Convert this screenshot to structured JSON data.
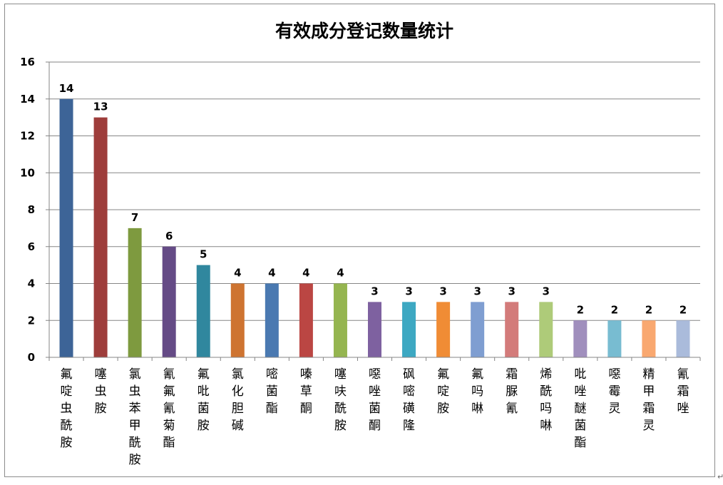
{
  "chart_data": {
    "type": "bar",
    "title": "有效成分登记数量统计",
    "xlabel": "",
    "ylabel": "",
    "ylim": [
      0,
      16
    ],
    "yticks": [
      0,
      2,
      4,
      6,
      8,
      10,
      12,
      14,
      16
    ],
    "grid": true,
    "legend": "none",
    "categories": [
      "氟啶虫酰胺",
      "噻虫胺",
      "氯虫苯甲酰胺",
      "氰氟氰菊酯",
      "氟吡菌胺",
      "氯化胆碱",
      "嘧菌酯",
      "嗪草酮",
      "噻呋酰胺",
      "噁唑菌酮",
      "砜嘧磺隆",
      "氟啶胺",
      "氟吗啉",
      "霜脲氰",
      "烯酰吗啉",
      "吡唑醚菌酯",
      "噁霉灵",
      "精甲霜灵",
      "氰霜唑"
    ],
    "values": [
      14,
      13,
      7,
      6,
      5,
      4,
      4,
      4,
      4,
      3,
      3,
      3,
      3,
      3,
      3,
      2,
      2,
      2,
      2
    ],
    "colors": [
      "#3D6497",
      "#9E3D3B",
      "#7E9A3F",
      "#654B86",
      "#30879E",
      "#CE7431",
      "#4A79B1",
      "#BB4643",
      "#95B550",
      "#7E61A0",
      "#3DA8C2",
      "#F08C35",
      "#7F9ED1",
      "#D37B7A",
      "#AECB79",
      "#A08FBD",
      "#78BCD1",
      "#F9A870",
      "#AABBDB"
    ]
  },
  "page": {
    "corner_mark": "↵"
  }
}
